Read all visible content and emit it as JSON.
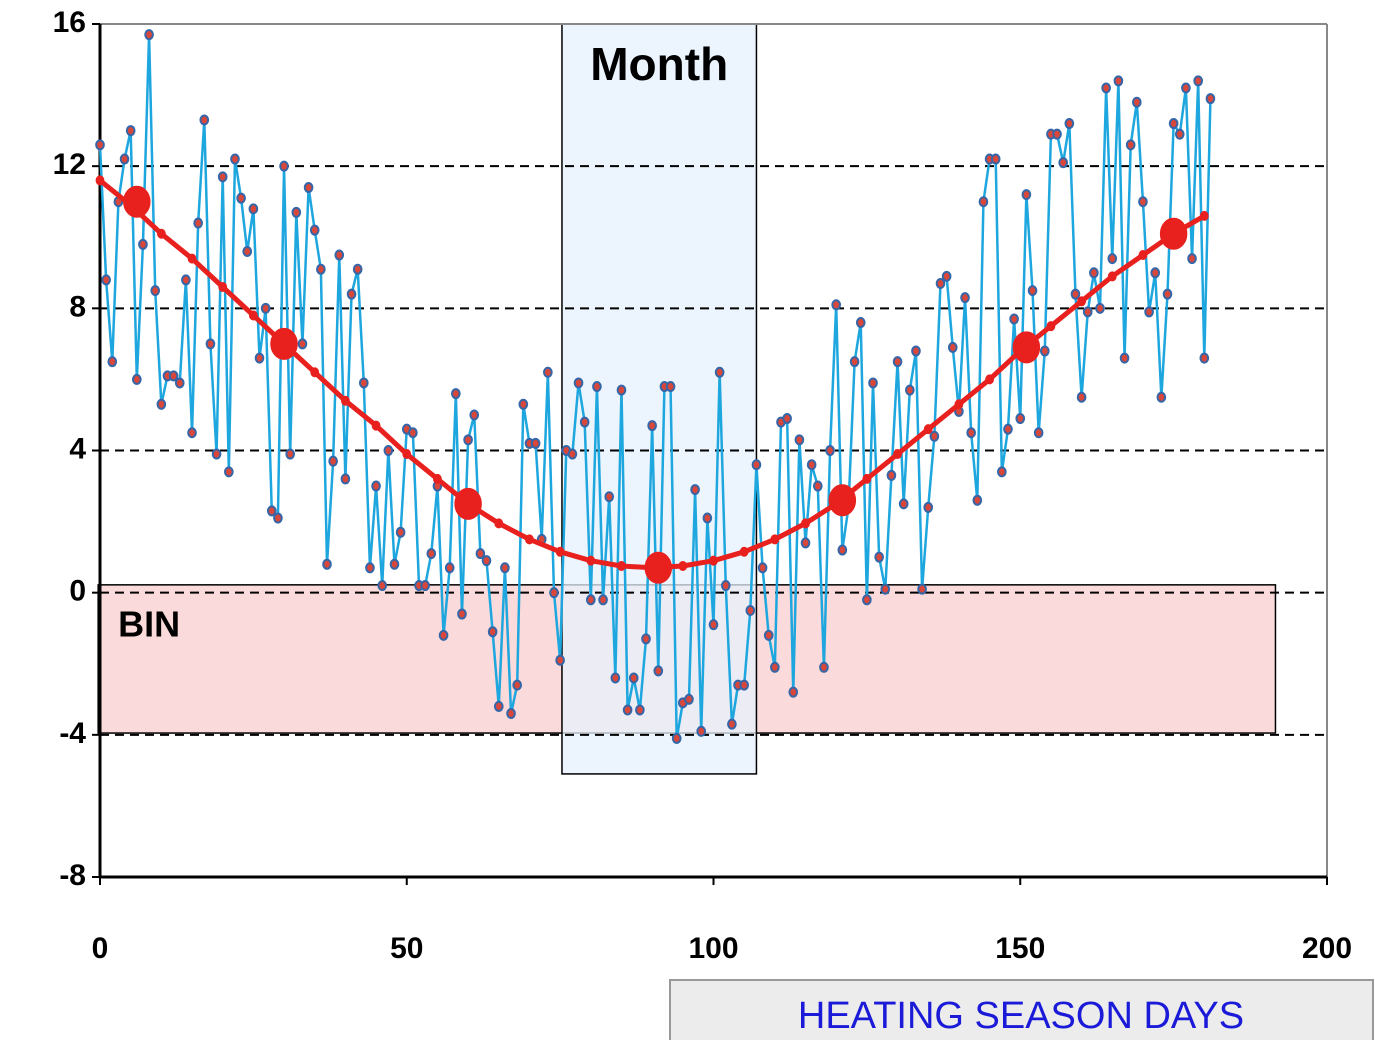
{
  "chart_data": {
    "type": "line",
    "x_label": "HEATING SEASON DAYS",
    "xlim": [
      0,
      200
    ],
    "xticks": [
      0,
      50,
      100,
      150,
      200
    ],
    "ylim": [
      -8,
      16
    ],
    "yticks": [
      -8,
      -4,
      0,
      4,
      8,
      12,
      16
    ],
    "grid": true,
    "regions": [
      {
        "label": "Month",
        "x": [
          75.3,
          107
        ],
        "y": [
          -5.1,
          16
        ],
        "color": "#e6f2fc"
      },
      {
        "label": "BIN",
        "x": [
          -0.3,
          191.6
        ],
        "y": [
          -3.95,
          0.22
        ],
        "color": "#fadada"
      }
    ],
    "series": [
      {
        "color": "#1ea6de",
        "marker_fill": "#d9463a",
        "marker_stroke": "#3466a8",
        "marker_size": 4.5,
        "line_width": 2.5,
        "x": [
          0,
          1,
          2,
          3,
          4,
          5,
          6,
          7,
          8,
          9,
          10,
          11,
          12,
          13,
          14,
          15,
          16,
          17,
          18,
          19,
          20,
          21,
          22,
          23,
          24,
          25,
          26,
          27,
          28,
          29,
          30,
          31,
          32,
          33,
          34,
          35,
          36,
          37,
          38,
          39,
          40,
          41,
          42,
          43,
          44,
          45,
          46,
          47,
          48,
          49,
          50,
          51,
          52,
          53,
          54,
          55,
          56,
          57,
          58,
          59,
          60,
          61,
          62,
          63,
          64,
          65,
          66,
          67,
          68,
          69,
          70,
          71,
          72,
          73,
          74,
          75,
          76,
          77,
          78,
          79,
          80,
          81,
          82,
          83,
          84,
          85,
          86,
          87,
          88,
          89,
          90,
          91,
          92,
          93,
          94,
          95,
          96,
          97,
          98,
          99,
          100,
          101,
          102,
          103,
          104,
          105,
          106,
          107,
          108,
          109,
          110,
          111,
          112,
          113,
          114,
          115,
          116,
          117,
          118,
          119,
          120,
          121,
          122,
          123,
          124,
          125,
          126,
          127,
          128,
          129,
          130,
          131,
          132,
          133,
          134,
          135,
          136,
          137,
          138,
          139,
          140,
          141,
          142,
          143,
          144,
          145,
          146,
          147,
          148,
          149,
          150,
          151,
          152,
          153,
          154,
          155,
          156,
          157,
          158,
          159,
          160,
          161,
          162,
          163,
          164,
          165,
          166,
          167,
          168,
          169,
          170,
          171,
          172,
          173,
          174,
          175,
          176,
          177,
          178,
          179,
          180,
          181
        ],
        "values": [
          12.6,
          8.8,
          6.5,
          11.0,
          12.2,
          13.0,
          6.0,
          9.8,
          15.7,
          8.5,
          5.3,
          6.1,
          6.1,
          5.9,
          8.8,
          4.5,
          10.4,
          13.3,
          7.0,
          3.9,
          11.7,
          3.4,
          12.2,
          11.1,
          9.6,
          10.8,
          6.6,
          8.0,
          2.3,
          2.1,
          12.0,
          3.9,
          10.7,
          7.0,
          11.4,
          10.2,
          9.1,
          0.8,
          3.7,
          9.5,
          3.2,
          8.4,
          9.1,
          5.9,
          0.7,
          3.0,
          0.2,
          4.0,
          0.8,
          1.7,
          4.6,
          4.5,
          0.2,
          0.2,
          1.1,
          3.0,
          -1.2,
          0.7,
          5.6,
          -0.6,
          4.3,
          5.0,
          1.1,
          0.9,
          -1.1,
          -3.2,
          0.7,
          -3.4,
          -2.6,
          5.3,
          4.2,
          4.2,
          1.5,
          6.2,
          0.0,
          -1.9,
          4.0,
          3.9,
          5.9,
          4.8,
          -0.2,
          5.8,
          -0.2,
          2.7,
          -2.4,
          5.7,
          -3.3,
          -2.4,
          -3.3,
          -1.3,
          4.7,
          -2.2,
          5.8,
          5.8,
          -4.1,
          -3.1,
          -3.0,
          2.9,
          -3.9,
          2.1,
          -0.9,
          6.2,
          0.2,
          -3.7,
          -2.6,
          -2.6,
          -0.5,
          3.6,
          0.7,
          -1.2,
          -2.1,
          4.8,
          4.9,
          -2.8,
          4.3,
          1.4,
          3.6,
          3.0,
          -2.1,
          4.0,
          8.1,
          1.2,
          2.4,
          6.5,
          7.6,
          -0.2,
          5.9,
          1.0,
          0.1,
          3.3,
          6.5,
          2.5,
          5.7,
          6.8,
          0.1,
          2.4,
          4.4,
          8.7,
          8.9,
          6.9,
          5.1,
          8.3,
          4.5,
          2.6,
          11.0,
          12.2,
          12.2,
          3.4,
          4.6,
          7.7,
          4.9,
          11.2,
          8.5,
          4.5,
          6.8,
          12.9,
          12.9,
          12.1,
          13.2,
          8.4,
          5.5,
          7.9,
          9.0,
          8.0,
          14.2,
          9.4,
          14.4,
          6.6,
          12.6,
          13.8,
          11.0,
          7.9,
          9.0,
          5.5,
          8.4,
          13.2,
          12.9,
          14.2,
          9.4,
          14.4,
          6.6,
          13.9
        ]
      },
      {
        "color": "#e8201e",
        "marker_fill": "#e8201e",
        "marker_stroke": "#e8201e",
        "marker_size": 4,
        "line_width": 5,
        "x": [
          0,
          5,
          10,
          15,
          20,
          25,
          30,
          35,
          40,
          45,
          50,
          55,
          60,
          65,
          70,
          75,
          80,
          85,
          90,
          95,
          100,
          105,
          110,
          115,
          120,
          125,
          130,
          135,
          140,
          145,
          150,
          155,
          160,
          165,
          170,
          175,
          180
        ],
        "values": [
          11.6,
          10.9,
          10.1,
          9.4,
          8.6,
          7.8,
          7.0,
          6.2,
          5.4,
          4.7,
          3.9,
          3.2,
          2.5,
          1.95,
          1.5,
          1.15,
          0.9,
          0.75,
          0.7,
          0.75,
          0.9,
          1.15,
          1.5,
          1.95,
          2.5,
          3.2,
          3.9,
          4.6,
          5.3,
          6.0,
          6.8,
          7.5,
          8.2,
          8.9,
          9.5,
          10.1,
          10.6
        ]
      },
      {
        "color": "#e8201e",
        "marker_fill": "#e8201e",
        "marker_stroke": "#e8201e",
        "marker_size": 15,
        "line_width": 0,
        "x": [
          6,
          30,
          60,
          91,
          121,
          151,
          175
        ],
        "values": [
          11.0,
          7.0,
          2.5,
          0.7,
          2.6,
          6.9,
          10.1
        ]
      }
    ]
  }
}
